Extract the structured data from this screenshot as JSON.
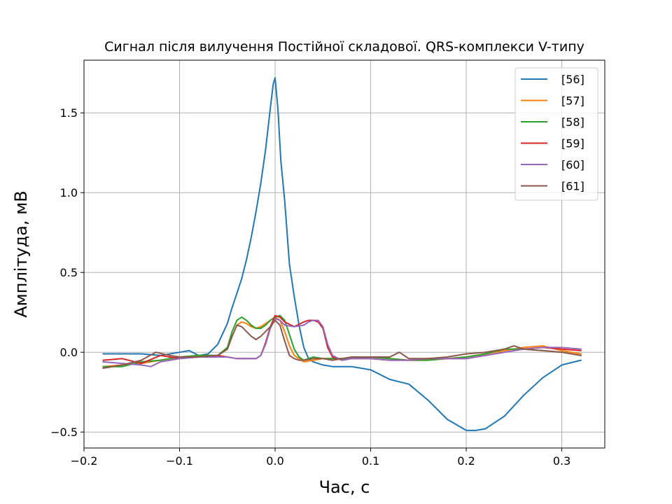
{
  "chart_data": {
    "type": "line",
    "title": "Сигнал після вилучення Постійної складової. QRS-комплекси V-типу",
    "xlabel": "Час, с",
    "ylabel": "Амплітуда, мВ",
    "xlim": [
      -0.2,
      0.345
    ],
    "ylim": [
      -0.6,
      1.83
    ],
    "grid": true,
    "legend_position": "top-right",
    "xticks": [
      -0.2,
      -0.1,
      0.0,
      0.1,
      0.2,
      0.3
    ],
    "xtick_labels": [
      "−0.2",
      "−0.1",
      "0.0",
      "0.1",
      "0.2",
      "0.3"
    ],
    "yticks": [
      -0.5,
      0.0,
      0.5,
      1.0,
      1.5
    ],
    "ytick_labels": [
      "−0.5",
      "0.0",
      "0.5",
      "1.0",
      "1.5"
    ],
    "series": [
      {
        "name": "[56]",
        "color": "#1f77b4",
        "x": [
          -0.18,
          -0.16,
          -0.14,
          -0.12,
          -0.1,
          -0.09,
          -0.08,
          -0.07,
          -0.06,
          -0.05,
          -0.045,
          -0.04,
          -0.035,
          -0.03,
          -0.025,
          -0.02,
          -0.015,
          -0.01,
          -0.005,
          -0.002,
          0.0,
          0.003,
          0.006,
          0.01,
          0.015,
          0.02,
          0.025,
          0.03,
          0.035,
          0.04,
          0.05,
          0.06,
          0.08,
          0.1,
          0.12,
          0.14,
          0.16,
          0.18,
          0.2,
          0.21,
          0.22,
          0.24,
          0.26,
          0.28,
          0.3,
          0.32
        ],
        "y": [
          -0.01,
          -0.01,
          -0.01,
          -0.02,
          0.0,
          0.01,
          -0.02,
          -0.01,
          0.05,
          0.18,
          0.28,
          0.37,
          0.46,
          0.58,
          0.72,
          0.88,
          1.06,
          1.27,
          1.53,
          1.68,
          1.72,
          1.52,
          1.2,
          0.95,
          0.55,
          0.35,
          0.17,
          0.03,
          -0.04,
          -0.06,
          -0.08,
          -0.09,
          -0.09,
          -0.11,
          -0.17,
          -0.2,
          -0.3,
          -0.42,
          -0.49,
          -0.49,
          -0.48,
          -0.4,
          -0.27,
          -0.16,
          -0.08,
          -0.05
        ]
      },
      {
        "name": "[57]",
        "color": "#ff7f0e",
        "x": [
          -0.18,
          -0.16,
          -0.14,
          -0.12,
          -0.1,
          -0.08,
          -0.06,
          -0.05,
          -0.045,
          -0.04,
          -0.035,
          -0.03,
          -0.025,
          -0.02,
          -0.015,
          -0.01,
          -0.005,
          0.0,
          0.005,
          0.01,
          0.015,
          0.02,
          0.025,
          0.03,
          0.04,
          0.05,
          0.06,
          0.08,
          0.1,
          0.12,
          0.14,
          0.16,
          0.18,
          0.2,
          0.22,
          0.24,
          0.26,
          0.28,
          0.3,
          0.32
        ],
        "y": [
          -0.09,
          -0.08,
          -0.07,
          -0.05,
          -0.03,
          -0.02,
          -0.02,
          0.02,
          0.1,
          0.17,
          0.19,
          0.18,
          0.16,
          0.15,
          0.16,
          0.18,
          0.2,
          0.22,
          0.2,
          0.13,
          0.04,
          -0.02,
          -0.04,
          -0.06,
          -0.05,
          -0.04,
          -0.04,
          -0.04,
          -0.03,
          -0.04,
          -0.05,
          -0.05,
          -0.04,
          -0.03,
          -0.01,
          0.01,
          0.03,
          0.04,
          0.01,
          -0.01
        ]
      },
      {
        "name": "[58]",
        "color": "#2ca02c",
        "x": [
          -0.18,
          -0.16,
          -0.14,
          -0.12,
          -0.1,
          -0.08,
          -0.06,
          -0.05,
          -0.045,
          -0.04,
          -0.035,
          -0.03,
          -0.025,
          -0.02,
          -0.015,
          -0.01,
          -0.005,
          0.0,
          0.005,
          0.01,
          0.015,
          0.02,
          0.025,
          0.03,
          0.04,
          0.05,
          0.06,
          0.08,
          0.1,
          0.12,
          0.14,
          0.16,
          0.18,
          0.2,
          0.22,
          0.24,
          0.26,
          0.28,
          0.3,
          0.32
        ],
        "y": [
          -0.09,
          -0.09,
          -0.06,
          -0.05,
          -0.03,
          -0.02,
          -0.02,
          0.03,
          0.13,
          0.2,
          0.22,
          0.2,
          0.17,
          0.15,
          0.15,
          0.17,
          0.2,
          0.22,
          0.23,
          0.2,
          0.11,
          0.02,
          -0.03,
          -0.05,
          -0.03,
          -0.04,
          -0.04,
          -0.04,
          -0.03,
          -0.04,
          -0.05,
          -0.05,
          -0.04,
          -0.03,
          -0.01,
          0.02,
          0.02,
          0.01,
          0.0,
          -0.02
        ]
      },
      {
        "name": "[59]",
        "color": "#d62728",
        "x": [
          -0.18,
          -0.16,
          -0.14,
          -0.12,
          -0.1,
          -0.08,
          -0.06,
          -0.05,
          -0.04,
          -0.03,
          -0.02,
          -0.015,
          -0.01,
          -0.005,
          0.0,
          0.005,
          0.01,
          0.02,
          0.03,
          0.035,
          0.04,
          0.045,
          0.05,
          0.055,
          0.06,
          0.07,
          0.08,
          0.1,
          0.12,
          0.14,
          0.16,
          0.18,
          0.2,
          0.22,
          0.24,
          0.26,
          0.28,
          0.3,
          0.32
        ],
        "y": [
          -0.05,
          -0.04,
          -0.07,
          -0.02,
          -0.04,
          -0.03,
          -0.02,
          -0.03,
          -0.04,
          -0.04,
          -0.04,
          -0.02,
          0.06,
          0.16,
          0.23,
          0.22,
          0.19,
          0.16,
          0.19,
          0.2,
          0.2,
          0.19,
          0.15,
          0.03,
          -0.03,
          -0.05,
          -0.04,
          -0.04,
          -0.05,
          -0.05,
          -0.04,
          -0.04,
          -0.04,
          -0.02,
          0.0,
          0.02,
          0.03,
          0.02,
          0.01
        ]
      },
      {
        "name": "[60]",
        "color": "#9467bd",
        "x": [
          -0.18,
          -0.16,
          -0.14,
          -0.13,
          -0.12,
          -0.1,
          -0.08,
          -0.06,
          -0.05,
          -0.04,
          -0.03,
          -0.02,
          -0.015,
          -0.01,
          -0.005,
          0.0,
          0.005,
          0.01,
          0.02,
          0.03,
          0.035,
          0.04,
          0.045,
          0.05,
          0.055,
          0.06,
          0.07,
          0.08,
          0.1,
          0.12,
          0.14,
          0.16,
          0.18,
          0.2,
          0.22,
          0.24,
          0.26,
          0.28,
          0.3,
          0.32
        ],
        "y": [
          -0.06,
          -0.07,
          -0.08,
          -0.09,
          -0.06,
          -0.04,
          -0.03,
          -0.03,
          -0.03,
          -0.04,
          -0.04,
          -0.04,
          -0.02,
          0.05,
          0.15,
          0.21,
          0.2,
          0.17,
          0.16,
          0.17,
          0.19,
          0.2,
          0.2,
          0.16,
          0.05,
          -0.02,
          -0.05,
          -0.04,
          -0.04,
          -0.05,
          -0.05,
          -0.04,
          -0.04,
          -0.04,
          -0.02,
          0.0,
          0.02,
          0.03,
          0.03,
          0.02
        ]
      },
      {
        "name": "[61]",
        "color": "#8c564b",
        "x": [
          -0.18,
          -0.16,
          -0.14,
          -0.125,
          -0.11,
          -0.1,
          -0.08,
          -0.06,
          -0.05,
          -0.045,
          -0.04,
          -0.035,
          -0.03,
          -0.025,
          -0.02,
          -0.015,
          -0.01,
          -0.005,
          0.0,
          0.005,
          0.01,
          0.015,
          0.02,
          0.025,
          0.03,
          0.04,
          0.05,
          0.06,
          0.08,
          0.1,
          0.12,
          0.13,
          0.14,
          0.16,
          0.18,
          0.2,
          0.22,
          0.24,
          0.25,
          0.26,
          0.28,
          0.3,
          0.32
        ],
        "y": [
          -0.1,
          -0.08,
          -0.05,
          0.0,
          -0.02,
          -0.03,
          -0.03,
          -0.02,
          0.02,
          0.1,
          0.17,
          0.16,
          0.13,
          0.1,
          0.08,
          0.1,
          0.13,
          0.16,
          0.2,
          0.17,
          0.07,
          -0.02,
          -0.04,
          -0.05,
          -0.05,
          -0.04,
          -0.04,
          -0.05,
          -0.03,
          -0.03,
          -0.03,
          0.0,
          -0.04,
          -0.04,
          -0.03,
          -0.01,
          0.0,
          0.02,
          0.04,
          0.02,
          0.01,
          0.0,
          -0.02
        ]
      }
    ]
  }
}
